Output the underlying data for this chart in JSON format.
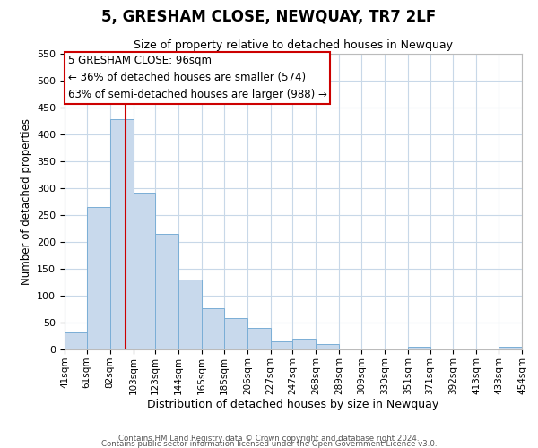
{
  "title": "5, GRESHAM CLOSE, NEWQUAY, TR7 2LF",
  "subtitle": "Size of property relative to detached houses in Newquay",
  "xlabel": "Distribution of detached houses by size in Newquay",
  "ylabel": "Number of detached properties",
  "bar_color": "#c8d9ec",
  "bar_edge_color": "#7aaed6",
  "bins": [
    41,
    61,
    82,
    103,
    123,
    144,
    165,
    185,
    206,
    227,
    247,
    268,
    289,
    309,
    330,
    351,
    371,
    392,
    413,
    433,
    454
  ],
  "counts": [
    32,
    265,
    428,
    291,
    215,
    130,
    76,
    59,
    40,
    15,
    20,
    10,
    0,
    0,
    0,
    5,
    0,
    0,
    0,
    5
  ],
  "x_tick_labels": [
    "41sqm",
    "61sqm",
    "82sqm",
    "103sqm",
    "123sqm",
    "144sqm",
    "165sqm",
    "185sqm",
    "206sqm",
    "227sqm",
    "247sqm",
    "268sqm",
    "289sqm",
    "309sqm",
    "330sqm",
    "351sqm",
    "371sqm",
    "392sqm",
    "413sqm",
    "433sqm",
    "454sqm"
  ],
  "ylim": [
    0,
    550
  ],
  "yticks": [
    0,
    50,
    100,
    150,
    200,
    250,
    300,
    350,
    400,
    450,
    500,
    550
  ],
  "vline_x": 96,
  "vline_color": "#cc0000",
  "annotation_title": "5 GRESHAM CLOSE: 96sqm",
  "annotation_line1": "← 36% of detached houses are smaller (574)",
  "annotation_line2": "63% of semi-detached houses are larger (988) →",
  "annotation_box_color": "#ffffff",
  "annotation_box_edge": "#cc0000",
  "footer1": "Contains HM Land Registry data © Crown copyright and database right 2024.",
  "footer2": "Contains public sector information licensed under the Open Government Licence v3.0.",
  "background_color": "#ffffff",
  "grid_color": "#c8d8e8",
  "title_fontsize": 12,
  "subtitle_fontsize": 9,
  "ylabel_fontsize": 8.5,
  "xlabel_fontsize": 9
}
